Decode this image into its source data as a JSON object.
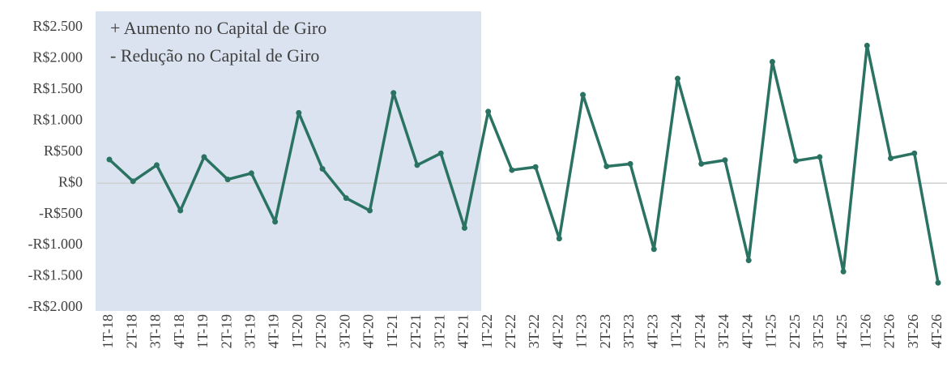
{
  "chart_data": {
    "type": "line",
    "annotations": [
      "+ Aumento no Capital de Giro",
      "- Redução no Capital de Giro"
    ],
    "categories": [
      "1T-18",
      "2T-18",
      "3T-18",
      "4T-18",
      "1T-19",
      "2T-19",
      "3T-19",
      "4T-19",
      "1T-20",
      "2T-20",
      "3T-20",
      "4T-20",
      "1T-21",
      "2T-21",
      "3T-21",
      "4T-21",
      "1T-22",
      "2T-22",
      "3T-22",
      "4T-22",
      "1T-23",
      "2T-23",
      "3T-23",
      "4T-23",
      "1T-24",
      "2T-24",
      "3T-24",
      "4T-24",
      "1T-25",
      "2T-25",
      "3T-25",
      "4T-25",
      "1T-26",
      "2T-26",
      "3T-26",
      "4T-26"
    ],
    "values": [
      380,
      30,
      290,
      -440,
      420,
      60,
      160,
      -620,
      1130,
      230,
      -240,
      -440,
      1450,
      290,
      480,
      -720,
      1150,
      210,
      260,
      -890,
      1420,
      270,
      310,
      -1060,
      1680,
      310,
      370,
      -1240,
      1950,
      360,
      420,
      -1420,
      2210,
      400,
      480,
      -1600
    ],
    "color": "#2a7262",
    "ylim": [
      -2000,
      2500
    ],
    "yticks": [
      {
        "value": 2500,
        "label": "R$2.500"
      },
      {
        "value": 2000,
        "label": "R$2.000"
      },
      {
        "value": 1500,
        "label": "R$1.500"
      },
      {
        "value": 1000,
        "label": "R$1.000"
      },
      {
        "value": 500,
        "label": "R$500"
      },
      {
        "value": 0,
        "label": "R$0"
      },
      {
        "value": -500,
        "label": "-R$500"
      },
      {
        "value": -1000,
        "label": "-R$1.000"
      },
      {
        "value": -1500,
        "label": "-R$1.500"
      },
      {
        "value": -2000,
        "label": "-R$2.000"
      }
    ],
    "grid": false
  }
}
